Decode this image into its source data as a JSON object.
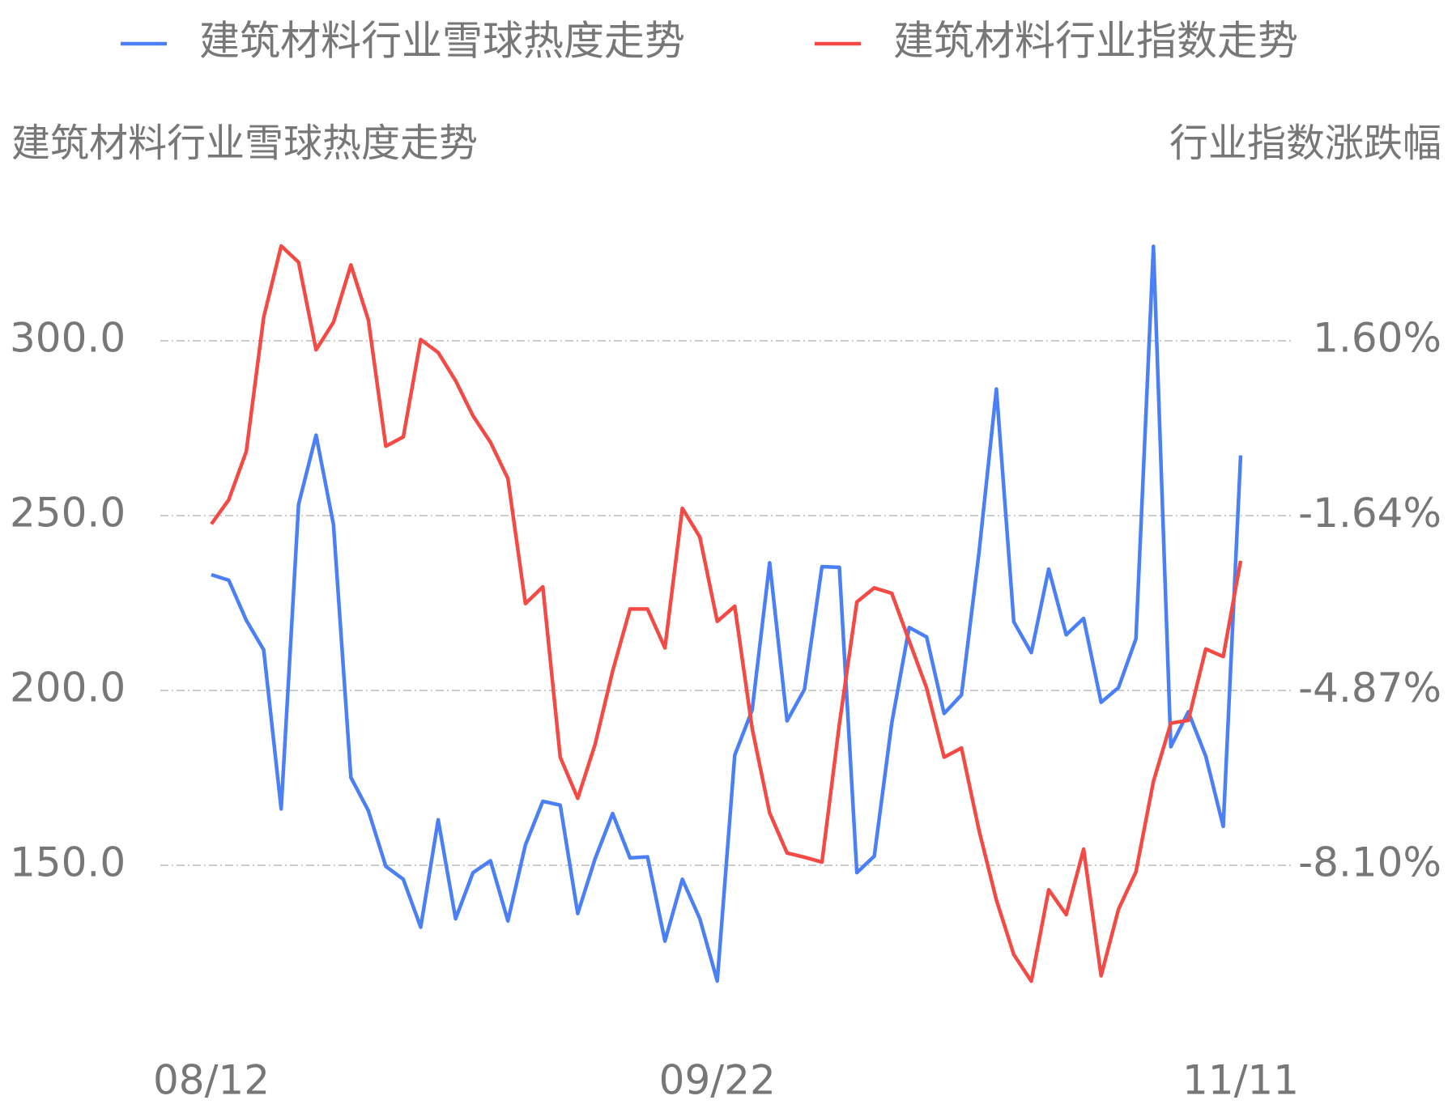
{
  "chart_data": {
    "type": "line",
    "y_label": "建筑材料行业雪球热度走势",
    "y2_label": "行业指数涨跌幅",
    "categories": [
      "08/12",
      null,
      null,
      null,
      null,
      null,
      null,
      null,
      null,
      null,
      null,
      null,
      null,
      null,
      null,
      null,
      null,
      null,
      null,
      null,
      null,
      null,
      null,
      null,
      null,
      null,
      null,
      null,
      null,
      "09/22",
      null,
      null,
      null,
      null,
      null,
      null,
      null,
      null,
      null,
      null,
      null,
      null,
      null,
      null,
      null,
      null,
      null,
      null,
      null,
      null,
      null,
      null,
      null,
      null,
      null,
      null,
      null,
      null,
      null,
      "11/11"
    ],
    "series": [
      {
        "name": "建筑材料行业雪球热度走势",
        "color": "#4a7ff5",
        "axis": "y",
        "values": [
          233.1,
          231.5,
          220.1,
          211.6,
          166.1,
          253.2,
          273.0,
          247.4,
          175.1,
          165.6,
          149.7,
          146.0,
          132.3,
          163.0,
          134.7,
          147.9,
          151.3,
          134.1,
          155.8,
          168.3,
          167.2,
          136.2,
          151.9,
          164.8,
          152.1,
          152.4,
          128.3,
          146.0,
          134.7,
          116.9,
          181.5,
          194.4,
          236.5,
          191.3,
          200.3,
          235.4,
          235.2,
          147.9,
          152.6,
          190.7,
          218.0,
          215.3,
          193.4,
          198.7,
          239.4,
          286.2,
          219.6,
          210.8,
          234.7,
          215.9,
          220.6,
          196.6,
          200.8,
          214.8,
          327.0,
          183.9,
          193.9,
          181.2,
          161.1,
          267.2
        ]
      },
      {
        "name": "建筑材料行业指数走势",
        "color": "#f44a45",
        "axis": "y2",
        "values": [
          -1.79,
          -1.34,
          -0.45,
          2.03,
          3.35,
          3.05,
          1.43,
          1.94,
          3.0,
          1.98,
          -0.35,
          -0.18,
          1.62,
          1.38,
          0.86,
          0.21,
          -0.28,
          -0.95,
          -3.26,
          -2.95,
          -6.1,
          -6.86,
          -5.86,
          -4.51,
          -3.36,
          -3.36,
          -4.08,
          -1.5,
          -2.03,
          -3.59,
          -3.31,
          -5.57,
          -7.13,
          -7.87,
          -7.95,
          -8.04,
          -5.49,
          -3.23,
          -2.97,
          -3.07,
          -3.95,
          -4.82,
          -6.1,
          -5.93,
          -7.45,
          -8.74,
          -9.75,
          -10.24,
          -8.55,
          -9.01,
          -7.8,
          -10.14,
          -8.91,
          -8.22,
          -6.55,
          -5.47,
          -5.42,
          -4.1,
          -4.24,
          -2.47
        ]
      }
    ],
    "ylim": [
      100,
      350
    ],
    "yticks": [
      {
        "value": 150,
        "label": "150.0"
      },
      {
        "value": 200,
        "label": "200.0"
      },
      {
        "value": 250,
        "label": "250.0"
      },
      {
        "value": 300,
        "label": "300.0"
      }
    ],
    "y2lim": [
      -11.33,
      4.83
    ],
    "y2ticks": [
      {
        "value": -8.1,
        "label": "-8.10%"
      },
      {
        "value": -4.87,
        "label": "-4.87%"
      },
      {
        "value": -1.64,
        "label": "-1.64%"
      },
      {
        "value": 1.6,
        "label": "1.60%"
      }
    ],
    "grid": true,
    "legend": "top"
  }
}
